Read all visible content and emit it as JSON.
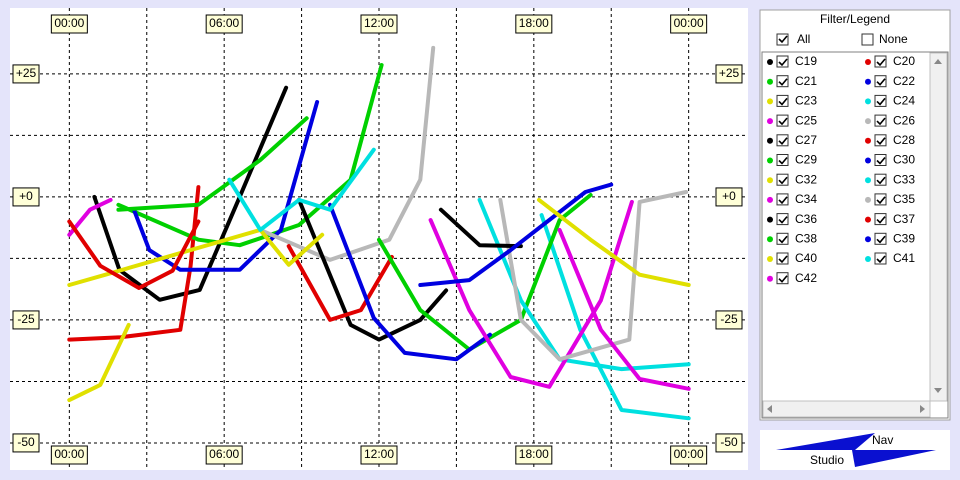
{
  "chart_data": {
    "type": "line",
    "xlim": [
      -2.3,
      26.3
    ],
    "ylim": [
      -55.5,
      38.4
    ],
    "xticks": [
      {
        "value": 0,
        "label": "00:00"
      },
      {
        "value": 6,
        "label": "06:00"
      },
      {
        "value": 12,
        "label": "12:00"
      },
      {
        "value": 18,
        "label": "18:00"
      },
      {
        "value": 24,
        "label": "00:00"
      }
    ],
    "yticks": [
      {
        "value": 25,
        "label": "+25"
      },
      {
        "value": 0,
        "label": "+0"
      },
      -25,
      -50
    ],
    "xminor": [
      3,
      9,
      15,
      21
    ],
    "yminor": [
      12.5,
      -12.5,
      -37.5
    ],
    "grid": true,
    "series": [
      {
        "name": "C19",
        "color": "#000000",
        "x": [
          0.97,
          1.94,
          3.5,
          5.05,
          6.6,
          8.4
        ],
        "values": [
          0,
          -14.8,
          -20.9,
          -18.9,
          0,
          22.2
        ]
      },
      {
        "name": "C20",
        "color": "#e00000",
        "x": [
          0,
          2,
          4.3,
          4.7,
          5.0
        ],
        "values": [
          -29,
          -28.5,
          -27,
          -14,
          2
        ]
      },
      {
        "name": "C21",
        "color": "#00d000",
        "x": [
          1.9,
          5,
          6.6,
          8.9,
          10.9,
          12.1
        ],
        "values": [
          -1.6,
          -8.7,
          -9.8,
          -5.7,
          3.5,
          26.8
        ]
      },
      {
        "name": "C22",
        "color": "#0000e0",
        "x": [
          2.5,
          3.1,
          4.3,
          6.6,
          8.2,
          9.6
        ],
        "values": [
          -2.6,
          -10.8,
          -14.8,
          -14.8,
          -6.7,
          19.3
        ]
      },
      {
        "name": "C23",
        "color": "#e0e000",
        "x": [
          0,
          1.2,
          2.3
        ],
        "values": [
          -41.3,
          -38.2,
          -26
        ]
      },
      {
        "name": "C24",
        "color": "#00e0e0",
        "x": [
          18.3,
          19.8,
          21.4,
          24
        ],
        "values": [
          -3.7,
          -27,
          -43.3,
          -45
        ]
      },
      {
        "name": "C25",
        "color": "#e000e0",
        "x": [
          0,
          0.8,
          1.6
        ],
        "values": [
          -7.7,
          -2.6,
          -0.6
        ]
      },
      {
        "name": "C26",
        "color": "#b8b8b8",
        "x": [
          7.4,
          10.1,
          12.4,
          13.6,
          14.1
        ],
        "values": [
          -6.7,
          -12.8,
          -8.7,
          3.5,
          30.3
        ]
      },
      {
        "name": "C27",
        "color": "#000000",
        "x": [
          8.9,
          10.9,
          12.0,
          13.6,
          14.6
        ],
        "values": [
          -0.6,
          -26,
          -29,
          -25,
          -19
        ]
      },
      {
        "name": "C28",
        "color": "#e00000",
        "x": [
          8.5,
          10.1,
          11.3,
          12.5
        ],
        "values": [
          -10,
          -25,
          -23,
          -12.2
        ]
      },
      {
        "name": "C29",
        "color": "#00d000",
        "x": [
          12,
          13.6,
          15.5,
          17.5,
          19,
          20.2
        ],
        "values": [
          -8.7,
          -23,
          -31,
          -25,
          -4.7,
          0.4
        ]
      },
      {
        "name": "C30",
        "color": "#0000e0",
        "x": [
          10.1,
          11.8,
          13,
          15,
          16.3
        ],
        "values": [
          -1.6,
          -24.6,
          -31.7,
          -33,
          -28
        ]
      },
      {
        "name": "C32",
        "color": "#e0e000",
        "x": [
          0,
          1.4,
          7.4,
          8.5,
          9.8
        ],
        "values": [
          -17.9,
          -15.8,
          -6.7,
          -13.8,
          -7.7
        ]
      },
      {
        "name": "C33",
        "color": "#00e0e0",
        "x": [
          15.9,
          17.5,
          19,
          21.4,
          24
        ],
        "values": [
          -0.6,
          -21,
          -33,
          -35,
          -34
        ]
      },
      {
        "name": "C34",
        "color": "#e000e0",
        "x": [
          14,
          15.5,
          17.1,
          18.6,
          20.6,
          21.8
        ],
        "values": [
          -4.7,
          -23,
          -36.6,
          -38.6,
          -21,
          -1
        ]
      },
      {
        "name": "C35",
        "color": "#b8b8b8",
        "x": [
          16.7,
          17.5,
          19,
          21.7,
          22.1,
          23.9
        ],
        "values": [
          -0.6,
          -25,
          -33,
          -29,
          -1,
          1
        ]
      },
      {
        "name": "C36",
        "color": "#000000",
        "x": [
          14.4,
          15.9,
          17.5
        ],
        "values": [
          -2.6,
          -9.8,
          -10
        ]
      },
      {
        "name": "C37",
        "color": "#e00000",
        "x": [
          0,
          1.2,
          2.7,
          4,
          5
        ],
        "values": [
          -5,
          -14,
          -18.5,
          -15,
          -5
        ]
      },
      {
        "name": "C38",
        "color": "#00d000",
        "x": [
          1.9,
          5,
          7.4,
          9.2
        ],
        "values": [
          -2.6,
          -1.6,
          7.5,
          16
        ]
      },
      {
        "name": "C39",
        "color": "#0000e0",
        "x": [
          13.6,
          15.5,
          17.1,
          20,
          21
        ],
        "values": [
          -17.9,
          -16.9,
          -10.8,
          1,
          2.5
        ]
      },
      {
        "name": "C40",
        "color": "#e0e000",
        "x": [
          18.2,
          20.2,
          22.1,
          24
        ],
        "values": [
          -0.6,
          -8.7,
          -15.8,
          -17.9
        ]
      },
      {
        "name": "C41",
        "color": "#00e0e0",
        "x": [
          6.2,
          7.4,
          8.9,
          10.1,
          11.8
        ],
        "values": [
          3.5,
          -6.7,
          -0.6,
          -2.6,
          9.6
        ]
      },
      {
        "name": "C42",
        "color": "#e000e0",
        "x": [
          19,
          20.6,
          22.1,
          24
        ],
        "values": [
          -6.7,
          -27,
          -37,
          -39
        ]
      }
    ]
  },
  "legend_panel": {
    "title": "Filter/Legend",
    "all": "All",
    "none": "None"
  },
  "logo": {
    "top": "Nav",
    "bottom": "Studio"
  }
}
